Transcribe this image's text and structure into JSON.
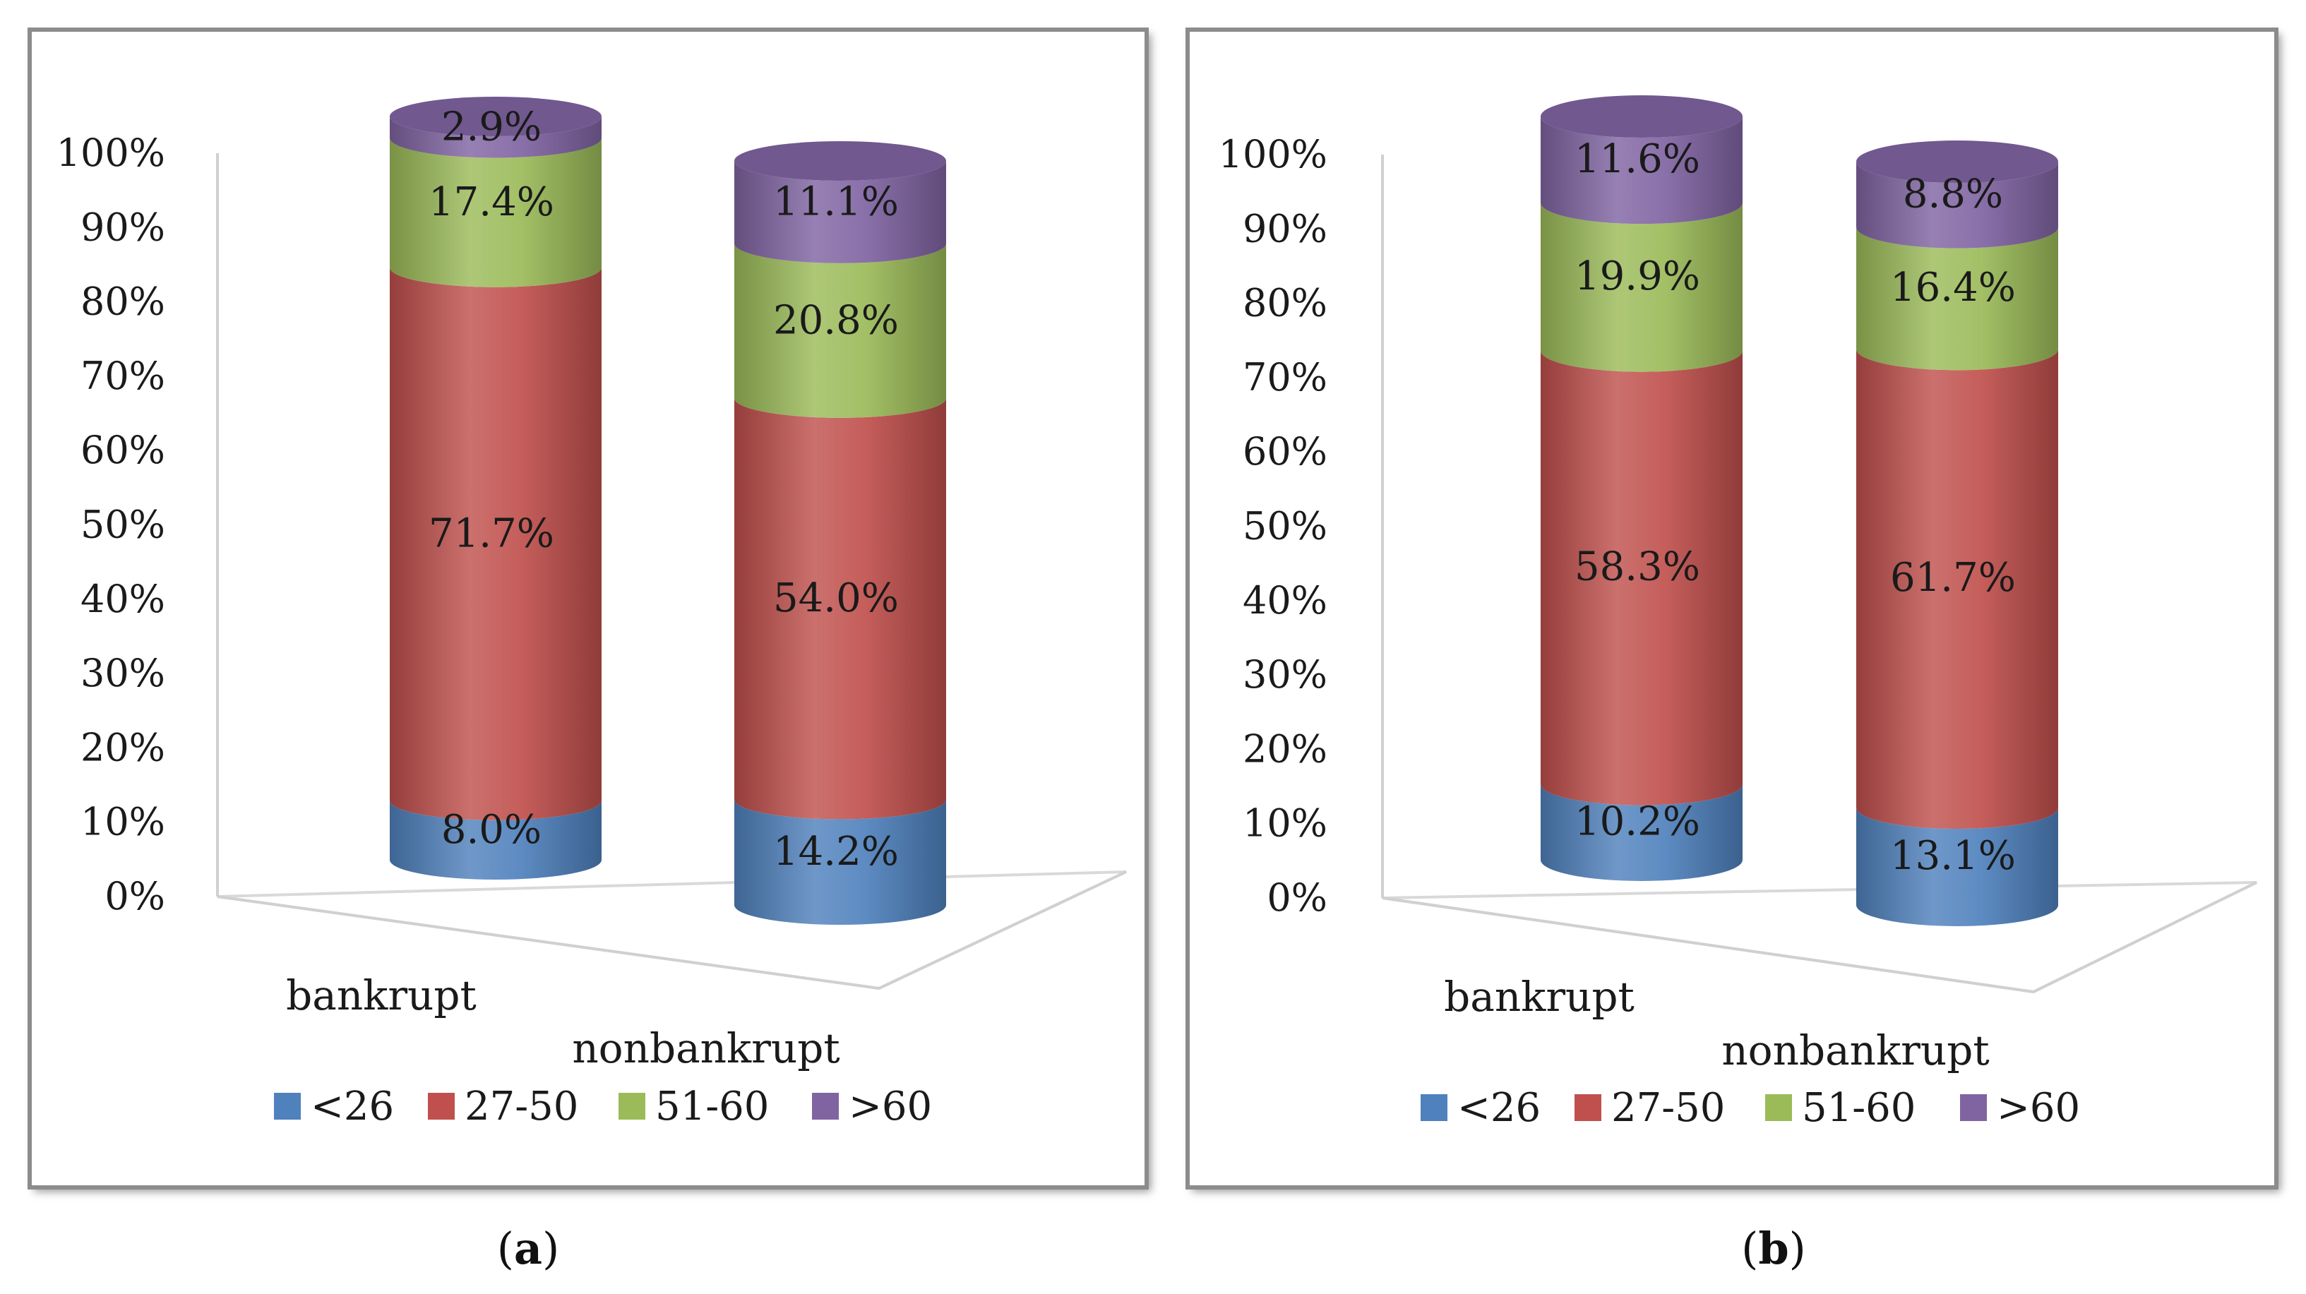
{
  "series_names": [
    "<26",
    "27-50",
    "51-60",
    ">60"
  ],
  "colors": {
    "<26": "#4f81bd",
    "27-50": "#c0504d",
    "51-60": "#9bbb59",
    ">60": "#8064a2"
  },
  "chart_data": [
    {
      "type": "bar",
      "panel_label": "a",
      "categories": [
        "bankrupt",
        "nonbankrupt"
      ],
      "series": [
        {
          "name": "<26",
          "values": [
            8.0,
            14.2
          ]
        },
        {
          "name": "27-50",
          "values": [
            71.7,
            54.0
          ]
        },
        {
          "name": "51-60",
          "values": [
            17.4,
            20.8
          ]
        },
        {
          "name": ">60",
          "values": [
            2.9,
            11.1
          ]
        }
      ],
      "data_labels": [
        [
          "8.0%",
          "14.2%"
        ],
        [
          "71.7%",
          "54.0%"
        ],
        [
          "17.4%",
          "20.8%"
        ],
        [
          "2.9%",
          "11.1%"
        ]
      ],
      "y_ticks": [
        "0%",
        "10%",
        "20%",
        "30%",
        "40%",
        "50%",
        "60%",
        "70%",
        "80%",
        "90%",
        "100%"
      ],
      "ylim": [
        0,
        100
      ],
      "stacked": true,
      "three_d": "cylinder",
      "legend_position": "bottom"
    },
    {
      "type": "bar",
      "panel_label": "b",
      "categories": [
        "bankrupt",
        "nonbankrupt"
      ],
      "series": [
        {
          "name": "<26",
          "values": [
            10.2,
            13.1
          ]
        },
        {
          "name": "27-50",
          "values": [
            58.3,
            61.7
          ]
        },
        {
          "name": "51-60",
          "values": [
            19.9,
            16.4
          ]
        },
        {
          "name": ">60",
          "values": [
            11.6,
            8.8
          ]
        }
      ],
      "data_labels": [
        [
          "10.2%",
          "13.1%"
        ],
        [
          "58.3%",
          "61.7%"
        ],
        [
          "19.9%",
          "16.4%"
        ],
        [
          "11.6%",
          "8.8%"
        ]
      ],
      "y_ticks": [
        "0%",
        "10%",
        "20%",
        "30%",
        "40%",
        "50%",
        "60%",
        "70%",
        "80%",
        "90%",
        "100%"
      ],
      "ylim": [
        0,
        100
      ],
      "stacked": true,
      "three_d": "cylinder",
      "legend_position": "bottom"
    }
  ]
}
